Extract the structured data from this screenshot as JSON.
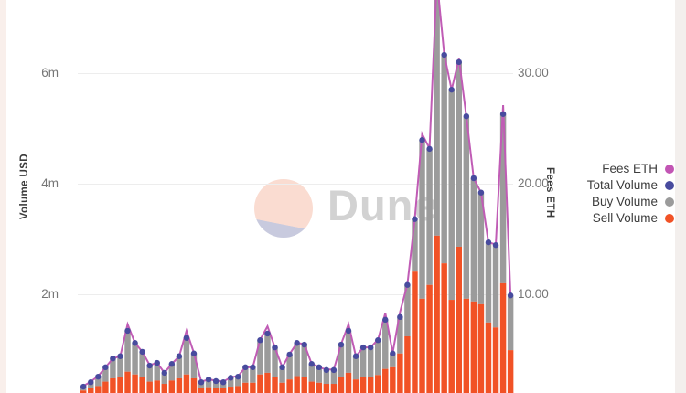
{
  "watermark": {
    "brand": "Dune",
    "circle_top_color": "#fadcd1",
    "circle_bottom_color": "#c8cade",
    "text_color": "#d2d2d2"
  },
  "legend": {
    "position": "right",
    "items": [
      {
        "label": "Fees ETH",
        "color": "#c255b4"
      },
      {
        "label": "Total Volume",
        "color": "#484b9e"
      },
      {
        "label": "Buy Volume",
        "color": "#9b9b9b"
      },
      {
        "label": "Sell Volume",
        "color": "#f15226"
      }
    ]
  },
  "chart_data": {
    "type": "bar",
    "composition": "stacked bars (left axis) + fees line (right axis) + total-volume scatter dots on bar tops",
    "title": "",
    "xlabel": "",
    "x_tick_labels": [],
    "x_axis_note_visible_labels": "x-axis labels cropped out of the visible screenshot",
    "y_left": {
      "title": "Volume USD",
      "unit": "USD",
      "ticks": [
        "2m",
        "4m",
        "6m"
      ],
      "tick_values": [
        2,
        4,
        6
      ],
      "visible_range_millions": [
        0.21,
        7.1
      ]
    },
    "y_right": {
      "title": "Fees ETH",
      "unit": "ETH",
      "ticks": [
        "10.00",
        "20.00",
        "30.00"
      ],
      "tick_values": [
        10,
        20,
        30
      ]
    },
    "grid": "horizontal",
    "legend_position": "right",
    "series": [
      {
        "name": "Sell Volume",
        "type": "bar",
        "stack": "volume",
        "axis": "left",
        "unit": "million USD",
        "color": "#f15226",
        "values": [
          0.26,
          0.3,
          0.34,
          0.42,
          0.48,
          0.5,
          0.6,
          0.55,
          0.5,
          0.42,
          0.44,
          0.38,
          0.44,
          0.48,
          0.55,
          0.48,
          0.3,
          0.32,
          0.31,
          0.3,
          0.33,
          0.34,
          0.4,
          0.4,
          0.55,
          0.58,
          0.5,
          0.4,
          0.46,
          0.52,
          0.5,
          0.42,
          0.4,
          0.38,
          0.38,
          0.5,
          0.58,
          0.46,
          0.5,
          0.5,
          0.54,
          0.65,
          0.68,
          0.93,
          1.24,
          2.41,
          1.92,
          2.17,
          3.06,
          2.56,
          1.9,
          2.86,
          1.92,
          1.87,
          1.82,
          1.49,
          1.4,
          2.2,
          0.99
        ]
      },
      {
        "name": "Buy Volume",
        "type": "bar",
        "stack": "volume",
        "axis": "left",
        "unit": "million USD",
        "color": "#9b9b9b",
        "values": [
          0.07,
          0.11,
          0.17,
          0.26,
          0.36,
          0.38,
          0.74,
          0.57,
          0.46,
          0.29,
          0.32,
          0.2,
          0.3,
          0.4,
          0.66,
          0.45,
          0.11,
          0.14,
          0.12,
          0.11,
          0.16,
          0.17,
          0.28,
          0.28,
          0.62,
          0.71,
          0.54,
          0.28,
          0.45,
          0.6,
          0.59,
          0.32,
          0.28,
          0.25,
          0.25,
          0.59,
          0.76,
          0.42,
          0.54,
          0.54,
          0.63,
          0.89,
          0.25,
          0.66,
          0.93,
          0.95,
          2.87,
          2.46,
          4.54,
          3.77,
          3.8,
          3.34,
          3.3,
          2.23,
          2.02,
          1.45,
          1.49,
          3.06,
          0.99
        ]
      },
      {
        "name": "Total Volume",
        "type": "scatter",
        "axis": "left",
        "unit": "million USD",
        "color": "#484b9e",
        "values": [
          0.33,
          0.41,
          0.51,
          0.68,
          0.84,
          0.88,
          1.34,
          1.12,
          0.96,
          0.71,
          0.76,
          0.58,
          0.74,
          0.88,
          1.21,
          0.93,
          0.41,
          0.46,
          0.43,
          0.41,
          0.49,
          0.51,
          0.68,
          0.68,
          1.17,
          1.29,
          1.04,
          0.68,
          0.91,
          1.12,
          1.09,
          0.74,
          0.68,
          0.63,
          0.63,
          1.09,
          1.34,
          0.88,
          1.04,
          1.04,
          1.17,
          1.54,
          0.93,
          1.59,
          2.17,
          3.36,
          4.79,
          4.63,
          7.6,
          6.33,
          5.7,
          6.2,
          5.22,
          4.1,
          3.84,
          2.94,
          2.89,
          5.26,
          1.98
        ]
      },
      {
        "name": "Fees ETH",
        "type": "line",
        "axis": "right",
        "unit": "ETH",
        "color": "#c05cb5",
        "values": [
          1.7,
          2.1,
          2.6,
          3.4,
          4.2,
          4.4,
          7.3,
          5.6,
          4.8,
          3.6,
          3.8,
          2.9,
          3.7,
          4.4,
          6.7,
          4.7,
          2.1,
          2.3,
          2.2,
          2.1,
          2.5,
          2.6,
          3.4,
          3.4,
          5.9,
          7.1,
          5.2,
          3.4,
          4.6,
          5.6,
          5.5,
          3.7,
          3.4,
          3.2,
          3.2,
          5.5,
          7.3,
          4.4,
          5.2,
          5.2,
          5.9,
          8.3,
          4.7,
          8.4,
          10.9,
          16.8,
          24.5,
          23.2,
          38.5,
          31.7,
          28.5,
          31.3,
          26.1,
          20.5,
          19.2,
          14.7,
          14.5,
          27.1,
          9.9
        ]
      }
    ]
  },
  "colors": {
    "grid": "#ededed",
    "tick_text": "#767676",
    "axis_title_text": "#3b3b3b",
    "legend_text": "#3d3d3d",
    "background": "#ffffff"
  }
}
